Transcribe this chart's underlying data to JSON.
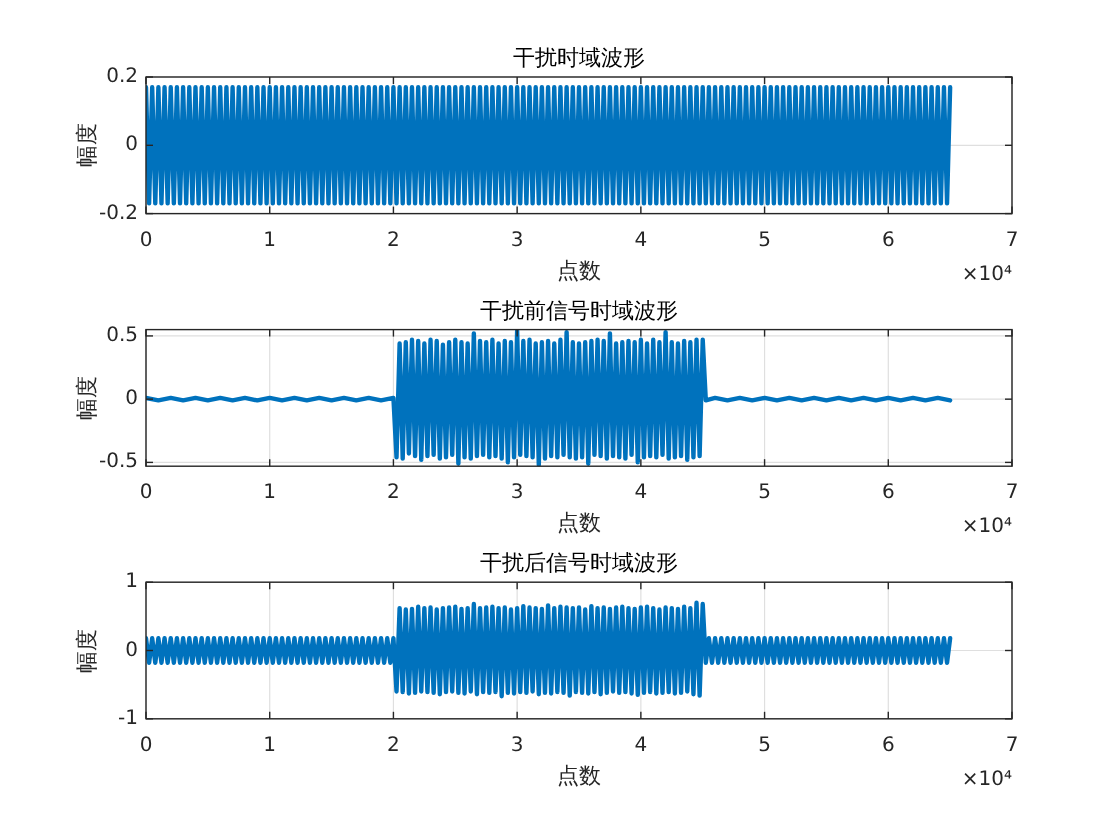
{
  "chart_data": [
    {
      "type": "line",
      "title": "干扰时域波形",
      "xlabel": "点数",
      "ylabel": "幅度",
      "annotations": [
        "×10⁴"
      ],
      "grid": true,
      "xlim": [
        0,
        7
      ],
      "xticks": [
        0,
        1,
        2,
        3,
        4,
        5,
        6,
        7
      ],
      "ylim": [
        -0.2,
        0.2
      ],
      "yticks": [
        -0.2,
        0,
        0.2
      ],
      "x": [
        0,
        0.025,
        0.05,
        0.075,
        0.1,
        0.125,
        0.15,
        0.175,
        0.2,
        0.225,
        0.25,
        0.275,
        0.3,
        0.325,
        0.35,
        0.375,
        0.4,
        0.425,
        0.45,
        0.475,
        0.5,
        0.525,
        0.55,
        0.575,
        0.6,
        0.625,
        0.65,
        0.675,
        0.7,
        0.725,
        0.75,
        0.775,
        0.8,
        0.825,
        0.85,
        0.875,
        0.9,
        0.925,
        0.95,
        0.975,
        1,
        1.025,
        1.05,
        1.075,
        1.1,
        1.125,
        1.15,
        1.175,
        1.2,
        1.225,
        1.25,
        1.275,
        1.3,
        1.325,
        1.35,
        1.375,
        1.4,
        1.425,
        1.45,
        1.475,
        1.5,
        1.525,
        1.55,
        1.575,
        1.6,
        1.625,
        1.65,
        1.675,
        1.7,
        1.725,
        1.75,
        1.775,
        1.8,
        1.825,
        1.85,
        1.875,
        1.9,
        1.925,
        1.95,
        1.975,
        2,
        2.025,
        2.05,
        2.075,
        2.1,
        2.125,
        2.15,
        2.175,
        2.2,
        2.225,
        2.25,
        2.275,
        2.3,
        2.325,
        2.35,
        2.375,
        2.4,
        2.425,
        2.45,
        2.475,
        2.5,
        2.525,
        2.55,
        2.575,
        2.6,
        2.625,
        2.65,
        2.675,
        2.7,
        2.725,
        2.75,
        2.775,
        2.8,
        2.825,
        2.85,
        2.875,
        2.9,
        2.925,
        2.95,
        2.975,
        3,
        3.025,
        3.05,
        3.075,
        3.1,
        3.125,
        3.15,
        3.175,
        3.2,
        3.225,
        3.25,
        3.275,
        3.3,
        3.325,
        3.35,
        3.375,
        3.4,
        3.425,
        3.45,
        3.475,
        3.5,
        3.525,
        3.55,
        3.575,
        3.6,
        3.625,
        3.65,
        3.675,
        3.7,
        3.725,
        3.75,
        3.775,
        3.8,
        3.825,
        3.85,
        3.875,
        3.9,
        3.925,
        3.95,
        3.975,
        4,
        4.025,
        4.05,
        4.075,
        4.1,
        4.125,
        4.15,
        4.175,
        4.2,
        4.225,
        4.25,
        4.275,
        4.3,
        4.325,
        4.35,
        4.375,
        4.4,
        4.425,
        4.45,
        4.475,
        4.5,
        4.525,
        4.55,
        4.575,
        4.6,
        4.625,
        4.65,
        4.675,
        4.7,
        4.725,
        4.75,
        4.775,
        4.8,
        4.825,
        4.85,
        4.875,
        4.9,
        4.925,
        4.95,
        4.975,
        5,
        5.025,
        5.05,
        5.075,
        5.1,
        5.125,
        5.15,
        5.175,
        5.2,
        5.225,
        5.25,
        5.275,
        5.3,
        5.325,
        5.35,
        5.375,
        5.4,
        5.425,
        5.45,
        5.475,
        5.5,
        5.525,
        5.55,
        5.575,
        5.6,
        5.625,
        5.65,
        5.675,
        5.7,
        5.725,
        5.75,
        5.775,
        5.8,
        5.825,
        5.85,
        5.875,
        5.9,
        5.925,
        5.95,
        5.975,
        6,
        6.025,
        6.05,
        6.075,
        6.1,
        6.125,
        6.15,
        6.175,
        6.2,
        6.225,
        6.25,
        6.275,
        6.3,
        6.325,
        6.35,
        6.375,
        6.4,
        6.425,
        6.45,
        6.475,
        6.5
      ],
      "series": [
        {
          "color": "#0072bd",
          "values": [
            0.17,
            -0.17,
            0.17,
            -0.17,
            0.17,
            -0.17,
            0.17,
            -0.17,
            0.17,
            -0.17,
            0.17,
            -0.17,
            0.17,
            -0.17,
            0.17,
            -0.17,
            0.17,
            -0.17,
            0.17,
            -0.17,
            0.17,
            -0.17,
            0.17,
            -0.17,
            0.17,
            -0.17,
            0.17,
            -0.17,
            0.17,
            -0.17,
            0.17,
            -0.17,
            0.17,
            -0.17,
            0.17,
            -0.17,
            0.17,
            -0.17,
            0.17,
            -0.17,
            0.17,
            -0.17,
            0.17,
            -0.17,
            0.17,
            -0.17,
            0.17,
            -0.17,
            0.17,
            -0.17,
            0.17,
            -0.17,
            0.17,
            -0.17,
            0.17,
            -0.17,
            0.17,
            -0.17,
            0.17,
            -0.17,
            0.17,
            -0.17,
            0.17,
            -0.17,
            0.17,
            -0.17,
            0.17,
            -0.17,
            0.17,
            -0.17,
            0.17,
            -0.17,
            0.17,
            -0.17,
            0.17,
            -0.17,
            0.17,
            -0.17,
            0.17,
            -0.17,
            0.17,
            -0.17,
            0.17,
            -0.17,
            0.17,
            -0.17,
            0.17,
            -0.17,
            0.17,
            -0.17,
            0.17,
            -0.17,
            0.17,
            -0.17,
            0.17,
            -0.17,
            0.17,
            -0.17,
            0.17,
            -0.17,
            0.17,
            -0.17,
            0.17,
            -0.17,
            0.17,
            -0.17,
            0.17,
            -0.17,
            0.17,
            -0.17,
            0.17,
            -0.17,
            0.17,
            -0.17,
            0.17,
            -0.17,
            0.17,
            -0.17,
            0.17,
            -0.17,
            0.17,
            -0.17,
            0.17,
            -0.17,
            0.17,
            -0.17,
            0.17,
            -0.17,
            0.17,
            -0.17,
            0.17,
            -0.17,
            0.17,
            -0.17,
            0.17,
            -0.17,
            0.17,
            -0.17,
            0.17,
            -0.17,
            0.17,
            -0.17,
            0.17,
            -0.17,
            0.17,
            -0.17,
            0.17,
            -0.17,
            0.17,
            -0.17,
            0.17,
            -0.17,
            0.17,
            -0.17,
            0.17,
            -0.17,
            0.17,
            -0.17,
            0.17,
            -0.17,
            0.17,
            -0.17,
            0.17,
            -0.17,
            0.17,
            -0.17,
            0.17,
            -0.17,
            0.17,
            -0.17,
            0.17,
            -0.17,
            0.17,
            -0.17,
            0.17,
            -0.17,
            0.17,
            -0.17,
            0.17,
            -0.17,
            0.17,
            -0.17,
            0.17,
            -0.17,
            0.17,
            -0.17,
            0.17,
            -0.17,
            0.17,
            -0.17,
            0.17,
            -0.17,
            0.17,
            -0.17,
            0.17,
            -0.17,
            0.17,
            -0.17,
            0.17,
            -0.17,
            0.17,
            -0.17,
            0.17,
            -0.17,
            0.17,
            -0.17,
            0.17,
            -0.17,
            0.17,
            -0.17,
            0.17,
            -0.17,
            0.17,
            -0.17,
            0.17,
            -0.17,
            0.17,
            -0.17,
            0.17,
            -0.17,
            0.17,
            -0.17,
            0.17,
            -0.17,
            0.17,
            -0.17,
            0.17,
            -0.17,
            0.17,
            -0.17,
            0.17,
            -0.17,
            0.17,
            -0.17,
            0.17,
            -0.17,
            0.17,
            -0.17,
            0.17,
            -0.17,
            0.17,
            -0.17,
            0.17,
            -0.17,
            0.17,
            -0.17,
            0.17,
            -0.17,
            0.17,
            -0.17,
            0.17,
            -0.17,
            0.17,
            -0.17,
            0.17,
            -0.17,
            0.17,
            -0.17,
            0.17,
            -0.17,
            0.17
          ]
        }
      ]
    },
    {
      "type": "line",
      "title": "干扰前信号时域波形",
      "xlabel": "点数",
      "ylabel": "幅度",
      "annotations": [
        "×10⁴"
      ],
      "grid": true,
      "xlim": [
        0,
        7
      ],
      "xticks": [
        0,
        1,
        2,
        3,
        4,
        5,
        6,
        7
      ],
      "ylim": [
        -0.53,
        0.55
      ],
      "yticks": [
        -0.5,
        0,
        0.5
      ],
      "x": [
        0,
        0.1,
        0.2,
        0.3,
        0.4,
        0.5,
        0.6,
        0.7,
        0.8,
        0.9,
        1,
        1.1,
        1.2,
        1.3,
        1.4,
        1.5,
        1.6,
        1.7,
        1.8,
        1.9,
        2,
        2.025,
        2.05,
        2.075,
        2.1,
        2.125,
        2.15,
        2.175,
        2.2,
        2.225,
        2.25,
        2.275,
        2.3,
        2.325,
        2.35,
        2.375,
        2.4,
        2.425,
        2.45,
        2.475,
        2.5,
        2.525,
        2.55,
        2.575,
        2.6,
        2.625,
        2.65,
        2.675,
        2.7,
        2.725,
        2.75,
        2.775,
        2.8,
        2.825,
        2.85,
        2.875,
        2.9,
        2.925,
        2.95,
        2.975,
        3,
        3.025,
        3.05,
        3.075,
        3.1,
        3.125,
        3.15,
        3.175,
        3.2,
        3.225,
        3.25,
        3.275,
        3.3,
        3.325,
        3.35,
        3.375,
        3.4,
        3.425,
        3.45,
        3.475,
        3.5,
        3.525,
        3.55,
        3.575,
        3.6,
        3.625,
        3.65,
        3.675,
        3.7,
        3.725,
        3.75,
        3.775,
        3.8,
        3.825,
        3.85,
        3.875,
        3.9,
        3.925,
        3.95,
        3.975,
        4,
        4.025,
        4.05,
        4.075,
        4.1,
        4.125,
        4.15,
        4.175,
        4.2,
        4.225,
        4.25,
        4.275,
        4.3,
        4.325,
        4.35,
        4.375,
        4.4,
        4.425,
        4.45,
        4.475,
        4.5,
        4.525,
        4.6,
        4.7,
        4.8,
        4.9,
        5,
        5.1,
        5.2,
        5.3,
        5.4,
        5.5,
        5.6,
        5.7,
        5.8,
        5.9,
        6,
        6.1,
        6.2,
        6.3,
        6.4,
        6.5
      ],
      "series": [
        {
          "color": "#0072bd",
          "values": [
            0.01,
            -0.01,
            0.01,
            -0.01,
            0.01,
            -0.01,
            0.01,
            -0.01,
            0.01,
            -0.01,
            0.01,
            -0.01,
            0.01,
            -0.01,
            0.01,
            -0.01,
            0.01,
            -0.01,
            0.01,
            -0.01,
            0.01,
            -0.46,
            0.44,
            -0.47,
            0.45,
            -0.43,
            0.47,
            -0.45,
            0.46,
            -0.48,
            0.44,
            -0.45,
            0.47,
            -0.44,
            0.46,
            -0.47,
            0.43,
            -0.46,
            0.45,
            -0.44,
            0.47,
            -0.51,
            0.45,
            -0.46,
            0.44,
            -0.47,
            0.52,
            -0.45,
            0.46,
            -0.44,
            0.45,
            -0.46,
            0.47,
            -0.45,
            0.44,
            -0.47,
            0.46,
            -0.5,
            0.45,
            -0.46,
            0.54,
            -0.44,
            0.46,
            -0.45,
            0.47,
            -0.46,
            0.44,
            -0.52,
            0.45,
            -0.47,
            0.46,
            -0.45,
            0.44,
            -0.46,
            0.47,
            -0.44,
            0.53,
            -0.46,
            0.45,
            -0.47,
            0.44,
            -0.46,
            0.45,
            -0.51,
            0.46,
            -0.44,
            0.47,
            -0.45,
            0.46,
            -0.47,
            0.52,
            -0.45,
            0.44,
            -0.46,
            0.45,
            -0.47,
            0.46,
            -0.44,
            0.45,
            -0.5,
            0.47,
            -0.46,
            0.44,
            -0.45,
            0.47,
            -0.46,
            0.45,
            -0.44,
            0.53,
            -0.47,
            0.45,
            -0.46,
            0.44,
            -0.45,
            0.46,
            -0.48,
            0.45,
            -0.46,
            0.47,
            -0.45,
            0.47,
            -0.01,
            0.01,
            -0.01,
            0.01,
            -0.01,
            0.01,
            -0.01,
            0.01,
            -0.01,
            0.01,
            -0.01,
            0.01,
            -0.01,
            0.01,
            -0.01,
            0.01,
            -0.01,
            0.01,
            -0.01,
            0.01,
            -0.01
          ]
        }
      ]
    },
    {
      "type": "line",
      "title": "干扰后信号时域波形",
      "xlabel": "点数",
      "ylabel": "幅度",
      "annotations": [
        "×10⁴"
      ],
      "grid": true,
      "xlim": [
        0,
        7
      ],
      "xticks": [
        0,
        1,
        2,
        3,
        4,
        5,
        6,
        7
      ],
      "ylim": [
        -1,
        1
      ],
      "yticks": [
        -1,
        0,
        1
      ],
      "x": [
        0,
        0.025,
        0.05,
        0.075,
        0.1,
        0.125,
        0.15,
        0.175,
        0.2,
        0.225,
        0.25,
        0.275,
        0.3,
        0.325,
        0.35,
        0.375,
        0.4,
        0.425,
        0.45,
        0.475,
        0.5,
        0.525,
        0.55,
        0.575,
        0.6,
        0.625,
        0.65,
        0.675,
        0.7,
        0.725,
        0.75,
        0.775,
        0.8,
        0.825,
        0.85,
        0.875,
        0.9,
        0.925,
        0.95,
        0.975,
        1,
        1.025,
        1.05,
        1.075,
        1.1,
        1.125,
        1.15,
        1.175,
        1.2,
        1.225,
        1.25,
        1.275,
        1.3,
        1.325,
        1.35,
        1.375,
        1.4,
        1.425,
        1.45,
        1.475,
        1.5,
        1.525,
        1.55,
        1.575,
        1.6,
        1.625,
        1.65,
        1.675,
        1.7,
        1.725,
        1.75,
        1.775,
        1.8,
        1.825,
        1.85,
        1.875,
        1.9,
        1.925,
        1.95,
        1.975,
        2,
        2.025,
        2.05,
        2.075,
        2.1,
        2.125,
        2.15,
        2.175,
        2.2,
        2.225,
        2.25,
        2.275,
        2.3,
        2.325,
        2.35,
        2.375,
        2.4,
        2.425,
        2.45,
        2.475,
        2.5,
        2.525,
        2.55,
        2.575,
        2.6,
        2.625,
        2.65,
        2.675,
        2.7,
        2.725,
        2.75,
        2.775,
        2.8,
        2.825,
        2.85,
        2.875,
        2.9,
        2.925,
        2.95,
        2.975,
        3,
        3.025,
        3.05,
        3.075,
        3.1,
        3.125,
        3.15,
        3.175,
        3.2,
        3.225,
        3.25,
        3.275,
        3.3,
        3.325,
        3.35,
        3.375,
        3.4,
        3.425,
        3.45,
        3.475,
        3.5,
        3.525,
        3.55,
        3.575,
        3.6,
        3.625,
        3.65,
        3.675,
        3.7,
        3.725,
        3.75,
        3.775,
        3.8,
        3.825,
        3.85,
        3.875,
        3.9,
        3.925,
        3.95,
        3.975,
        4,
        4.025,
        4.05,
        4.075,
        4.1,
        4.125,
        4.15,
        4.175,
        4.2,
        4.225,
        4.25,
        4.275,
        4.3,
        4.325,
        4.35,
        4.375,
        4.4,
        4.425,
        4.45,
        4.475,
        4.5,
        4.525,
        4.55,
        4.575,
        4.6,
        4.625,
        4.65,
        4.675,
        4.7,
        4.725,
        4.75,
        4.775,
        4.8,
        4.825,
        4.85,
        4.875,
        4.9,
        4.925,
        4.95,
        4.975,
        5,
        5.025,
        5.05,
        5.075,
        5.1,
        5.125,
        5.15,
        5.175,
        5.2,
        5.225,
        5.25,
        5.275,
        5.3,
        5.325,
        5.35,
        5.375,
        5.4,
        5.425,
        5.45,
        5.475,
        5.5,
        5.525,
        5.55,
        5.575,
        5.6,
        5.625,
        5.65,
        5.675,
        5.7,
        5.725,
        5.75,
        5.775,
        5.8,
        5.825,
        5.85,
        5.875,
        5.9,
        5.925,
        5.95,
        5.975,
        6,
        6.025,
        6.05,
        6.075,
        6.1,
        6.125,
        6.15,
        6.175,
        6.2,
        6.225,
        6.25,
        6.275,
        6.3,
        6.325,
        6.35,
        6.375,
        6.4,
        6.425,
        6.45,
        6.475,
        6.5
      ],
      "series": [
        {
          "color": "#0072bd",
          "values": [
            0.18,
            -0.18,
            0.18,
            -0.18,
            0.18,
            -0.18,
            0.18,
            -0.18,
            0.18,
            -0.18,
            0.18,
            -0.18,
            0.18,
            -0.18,
            0.18,
            -0.18,
            0.18,
            -0.18,
            0.18,
            -0.18,
            0.18,
            -0.18,
            0.18,
            -0.18,
            0.18,
            -0.18,
            0.18,
            -0.18,
            0.18,
            -0.18,
            0.18,
            -0.18,
            0.18,
            -0.18,
            0.18,
            -0.18,
            0.18,
            -0.18,
            0.18,
            -0.18,
            0.18,
            -0.18,
            0.18,
            -0.18,
            0.18,
            -0.18,
            0.18,
            -0.18,
            0.18,
            -0.18,
            0.18,
            -0.18,
            0.18,
            -0.18,
            0.18,
            -0.18,
            0.18,
            -0.18,
            0.18,
            -0.18,
            0.18,
            -0.18,
            0.18,
            -0.18,
            0.18,
            -0.18,
            0.18,
            -0.18,
            0.18,
            -0.18,
            0.18,
            -0.18,
            0.18,
            -0.18,
            0.18,
            -0.18,
            0.18,
            -0.18,
            0.18,
            -0.18,
            0.18,
            -0.6,
            0.62,
            -0.61,
            0.6,
            -0.63,
            0.61,
            -0.62,
            0.64,
            -0.6,
            0.62,
            -0.61,
            0.63,
            -0.62,
            0.6,
            -0.64,
            0.62,
            -0.61,
            0.63,
            -0.6,
            0.64,
            -0.62,
            0.61,
            -0.63,
            0.62,
            -0.6,
            0.68,
            -0.64,
            0.62,
            -0.61,
            0.63,
            -0.62,
            0.64,
            -0.61,
            0.62,
            -0.67,
            0.63,
            -0.62,
            0.6,
            -0.63,
            0.62,
            -0.61,
            0.65,
            -0.62,
            0.63,
            -0.6,
            0.62,
            -0.64,
            0.61,
            -0.62,
            0.66,
            -0.63,
            0.62,
            -0.61,
            0.64,
            -0.62,
            0.63,
            -0.66,
            0.62,
            -0.61,
            0.63,
            -0.62,
            0.6,
            -0.63,
            0.65,
            -0.61,
            0.62,
            -0.64,
            0.63,
            -0.62,
            0.61,
            -0.6,
            0.63,
            -0.62,
            0.64,
            -0.61,
            0.62,
            -0.63,
            0.61,
            -0.65,
            0.63,
            -0.62,
            0.64,
            -0.61,
            0.62,
            -0.63,
            0.6,
            -0.62,
            0.63,
            -0.61,
            0.62,
            -0.63,
            0.61,
            -0.62,
            0.64,
            -0.6,
            0.62,
            -0.64,
            0.7,
            -0.66,
            0.68,
            -0.18,
            0.18,
            -0.18,
            0.18,
            -0.18,
            0.18,
            -0.18,
            0.18,
            -0.18,
            0.18,
            -0.18,
            0.18,
            -0.18,
            0.18,
            -0.18,
            0.18,
            -0.18,
            0.18,
            -0.18,
            0.18,
            -0.18,
            0.18,
            -0.18,
            0.18,
            -0.18,
            0.18,
            -0.18,
            0.18,
            -0.18,
            0.18,
            -0.18,
            0.18,
            -0.18,
            0.18,
            -0.18,
            0.18,
            -0.18,
            0.18,
            -0.18,
            0.18,
            -0.18,
            0.18,
            -0.18,
            0.18,
            -0.18,
            0.18,
            -0.18,
            0.18,
            -0.18,
            0.18,
            -0.18,
            0.18,
            -0.18,
            0.18,
            -0.18,
            0.18,
            -0.18,
            0.18,
            -0.18,
            0.18,
            -0.18,
            0.18,
            -0.18,
            0.18,
            -0.18,
            0.18,
            -0.18,
            0.18,
            -0.18,
            0.18,
            -0.18,
            0.18,
            -0.18,
            0.18,
            -0.18,
            0.18,
            -0.18,
            0.18,
            -0.18,
            0.18
          ]
        }
      ]
    }
  ]
}
